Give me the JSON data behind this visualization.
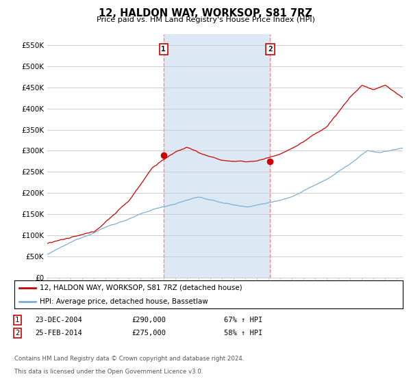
{
  "title": "12, HALDON WAY, WORKSOP, S81 7RZ",
  "subtitle": "Price paid vs. HM Land Registry's House Price Index (HPI)",
  "ylabel_ticks": [
    "£0",
    "£50K",
    "£100K",
    "£150K",
    "£200K",
    "£250K",
    "£300K",
    "£350K",
    "£400K",
    "£450K",
    "£500K",
    "£550K"
  ],
  "ylim": [
    0,
    575000
  ],
  "xlim_start": 1995.0,
  "xlim_end": 2025.5,
  "sale1_date": 2004.97,
  "sale1_price": 290000,
  "sale2_date": 2014.12,
  "sale2_price": 275000,
  "shade_color": "#dce9f5",
  "red_color": "#cc0000",
  "blue_color": "#7aaed6",
  "grid_color": "#cccccc",
  "dashed_color": "#ff8888",
  "legend_label_red": "12, HALDON WAY, WORKSOP, S81 7RZ (detached house)",
  "legend_label_blue": "HPI: Average price, detached house, Bassetlaw",
  "footnote_line1": "Contains HM Land Registry data © Crown copyright and database right 2024.",
  "footnote_line2": "This data is licensed under the Open Government Licence v3.0.",
  "bg_color": "#ffffff",
  "n_points": 366
}
